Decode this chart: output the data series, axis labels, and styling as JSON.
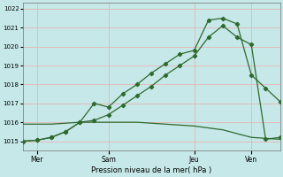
{
  "title": "Pression niveau de la mer( hPa )",
  "bg_color": "#c6e8e8",
  "grid_color": "#e8b4b4",
  "line_color": "#2d6a2d",
  "ylim": [
    1014.5,
    1022.3
  ],
  "yticks": [
    1015,
    1016,
    1017,
    1018,
    1019,
    1020,
    1021,
    1022
  ],
  "xlim": [
    0,
    9
  ],
  "xtick_positions": [
    0.5,
    3,
    6,
    8
  ],
  "xtick_labels": [
    "Mer",
    "Sam",
    "Jeu",
    "Ven"
  ],
  "vline_positions": [
    0.5,
    3,
    6,
    8
  ],
  "line1_x": [
    0,
    0.5,
    1,
    1.5,
    2,
    2.5,
    3,
    3.5,
    4,
    4.5,
    5,
    5.5,
    6,
    6.5,
    7,
    7.5,
    8,
    8.5,
    9
  ],
  "line1_y": [
    1015.0,
    1015.05,
    1015.2,
    1015.5,
    1016.0,
    1017.0,
    1016.8,
    1017.5,
    1018.0,
    1018.6,
    1019.1,
    1019.6,
    1019.8,
    1021.4,
    1021.5,
    1021.2,
    1018.5,
    1017.8,
    1017.1
  ],
  "line2_x": [
    0,
    0.5,
    1,
    1.5,
    2,
    2.5,
    3,
    3.5,
    4,
    4.5,
    5,
    5.5,
    6,
    6.5,
    7,
    7.5,
    8,
    8.5,
    9
  ],
  "line2_y": [
    1015.0,
    1015.05,
    1015.2,
    1015.5,
    1016.0,
    1016.1,
    1016.4,
    1016.9,
    1017.4,
    1017.9,
    1018.5,
    1019.0,
    1019.5,
    1020.5,
    1021.1,
    1020.5,
    1020.1,
    1015.1,
    1015.2
  ],
  "line3_x": [
    0,
    1,
    2,
    3,
    4,
    5,
    6,
    7,
    8,
    9
  ],
  "line3_y": [
    1015.9,
    1015.9,
    1016.0,
    1016.0,
    1016.0,
    1015.9,
    1015.8,
    1015.6,
    1015.2,
    1015.1
  ]
}
